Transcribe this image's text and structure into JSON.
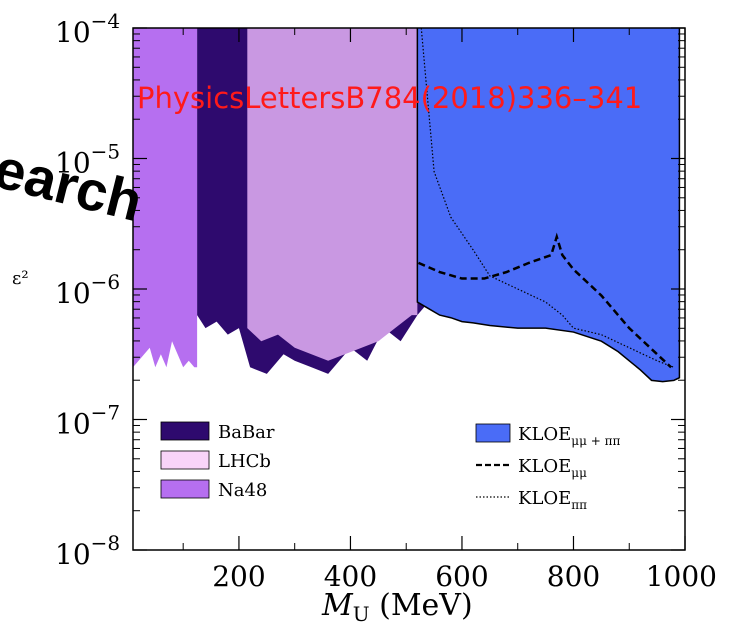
{
  "chart_data": {
    "type": "area",
    "xlabel_main": "M",
    "xlabel_sub": "U",
    "xlabel_unit": " (MeV)",
    "ylabel": "ε²",
    "xlim": [
      10,
      1000
    ],
    "ylim_log10": [
      -8,
      -4
    ],
    "y_scale": "log",
    "x_ticks": [
      {
        "value": 200,
        "label": "200"
      },
      {
        "value": 400,
        "label": "400"
      },
      {
        "value": 600,
        "label": "600"
      },
      {
        "value": 800,
        "label": "800"
      },
      {
        "value": 1000,
        "label": "1000"
      }
    ],
    "y_ticks": [
      {
        "exp": -4,
        "base": "10",
        "sup": "−4"
      },
      {
        "exp": -5,
        "base": "10",
        "sup": "−5"
      },
      {
        "exp": -6,
        "base": "10",
        "sup": "−6"
      },
      {
        "exp": -7,
        "base": "10",
        "sup": "−7"
      },
      {
        "exp": -8,
        "base": "10",
        "sup": "−8"
      }
    ],
    "legend_left": [
      {
        "key": "babar",
        "label": "BaBar",
        "color": "#2e0a6e"
      },
      {
        "key": "lhcb",
        "label": "LHCb",
        "color": "#f8d4f8"
      },
      {
        "key": "na48",
        "label": "Na48",
        "color": "#b66ff0"
      }
    ],
    "legend_right": [
      {
        "key": "kloe_comb",
        "label": "KLOE",
        "sub": "μμ + ππ",
        "color": "#4a6cf7",
        "style": "box"
      },
      {
        "key": "kloe_mumu",
        "label": "KLOE",
        "sub": "μμ",
        "color": "#000000",
        "style": "dashed"
      },
      {
        "key": "kloe_pipi",
        "label": "KLOE",
        "sub": "ππ",
        "color": "#000000",
        "style": "dotted"
      }
    ],
    "series": [
      {
        "name": "Na48",
        "color": "#b66ff0",
        "x": [
          10,
          20,
          30,
          40,
          50,
          60,
          70,
          80,
          90,
          100,
          110,
          120,
          125
        ],
        "log10_y": [
          -6.6,
          -6.55,
          -6.5,
          -6.45,
          -6.6,
          -6.5,
          -6.6,
          -6.4,
          -6.5,
          -6.6,
          -6.55,
          -6.6,
          -6.6
        ]
      },
      {
        "name": "BaBar",
        "color": "#2e0a6e",
        "x": [
          125,
          140,
          160,
          180,
          200,
          220,
          250,
          280,
          300,
          330,
          360,
          400,
          430,
          460,
          490,
          520,
          550,
          580,
          600
        ],
        "log10_y": [
          -6.2,
          -6.3,
          -6.25,
          -6.35,
          -6.3,
          -6.6,
          -6.65,
          -6.5,
          -6.55,
          -6.6,
          -6.65,
          -6.45,
          -6.55,
          -6.3,
          -6.4,
          -6.2,
          -6.05,
          -5.95,
          -6.0
        ]
      },
      {
        "name": "LHCb",
        "color": "#c998e2",
        "x": [
          215,
          240,
          270,
          300,
          330,
          360,
          390,
          420,
          450,
          480,
          510,
          520
        ],
        "log10_y": [
          -6.3,
          -6.4,
          -6.35,
          -6.45,
          -6.5,
          -6.55,
          -6.5,
          -6.45,
          -6.4,
          -6.3,
          -6.2,
          -6.2
        ]
      },
      {
        "name": "KLOE μμ + ππ",
        "color": "#4a6cf7",
        "x": [
          520,
          540,
          560,
          580,
          600,
          620,
          650,
          700,
          750,
          800,
          850,
          880,
          900,
          920,
          940,
          960,
          980,
          990
        ],
        "log10_y": [
          -6.1,
          -6.15,
          -6.2,
          -6.22,
          -6.25,
          -6.26,
          -6.28,
          -6.3,
          -6.3,
          -6.33,
          -6.4,
          -6.48,
          -6.55,
          -6.62,
          -6.7,
          -6.71,
          -6.7,
          -6.68
        ]
      },
      {
        "name": "KLOE μμ",
        "color": "#000000",
        "x": [
          522,
          560,
          600,
          640,
          680,
          720,
          760,
          770,
          780,
          800,
          850,
          900,
          950,
          975
        ],
        "log10_y": [
          -5.8,
          -5.87,
          -5.92,
          -5.92,
          -5.87,
          -5.8,
          -5.74,
          -5.6,
          -5.74,
          -5.85,
          -6.05,
          -6.3,
          -6.5,
          -6.6
        ]
      },
      {
        "name": "KLOE ππ",
        "color": "#000000",
        "x": [
          527,
          550,
          580,
          620,
          650,
          700,
          750,
          780,
          800,
          850,
          900,
          950,
          980
        ],
        "log10_y": [
          -4.0,
          -5.1,
          -5.45,
          -5.7,
          -5.9,
          -6.0,
          -6.1,
          -6.2,
          -6.3,
          -6.35,
          -6.45,
          -6.55,
          -6.6
        ]
      }
    ],
    "watermark": "PhysicsLettersB784(2018)336–341",
    "stamp": "earch"
  }
}
